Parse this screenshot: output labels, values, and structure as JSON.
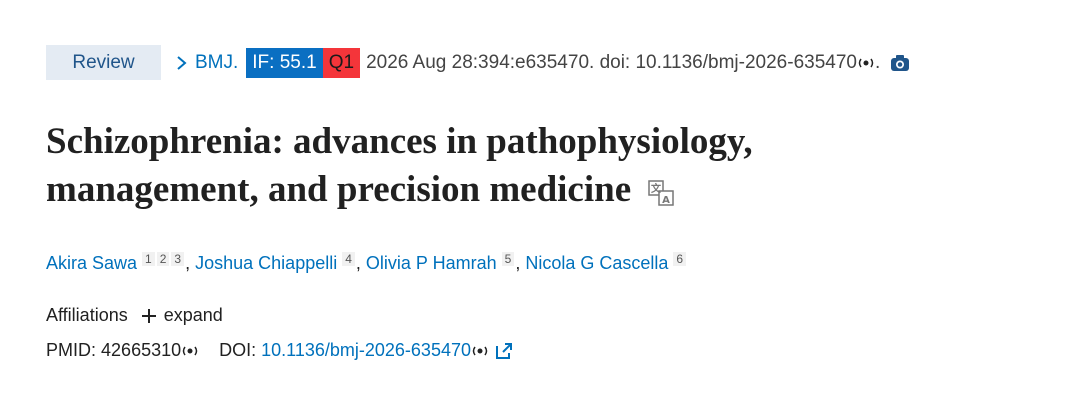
{
  "article_type": "Review",
  "citation": {
    "journal": "BMJ.",
    "impact_factor": "IF: 55.1",
    "quartile": "Q1",
    "details": "2026 Aug 28:394:e635470. doi: 10.1136/bmj-2026-635470",
    "end": "."
  },
  "title_lines": [
    "Schizophrenia: advances in pathophysiology,",
    "management, and precision medicine"
  ],
  "authors": [
    {
      "name": "Akira Sawa",
      "affiliations": [
        1,
        2,
        3
      ]
    },
    {
      "name": "Joshua Chiappelli",
      "affiliations": [
        4
      ]
    },
    {
      "name": "Olivia P Hamrah",
      "affiliations": [
        5
      ]
    },
    {
      "name": "Nicola G Cascella",
      "affiliations": [
        6
      ]
    }
  ],
  "author_separator": ",",
  "affiliations": {
    "label": "Affiliations",
    "expand": "expand"
  },
  "identifiers": {
    "pmid_label": "PMID:",
    "pmid": "42665310",
    "doi_label": "DOI:",
    "doi": "10.1136/bmj-2026-635470"
  }
}
